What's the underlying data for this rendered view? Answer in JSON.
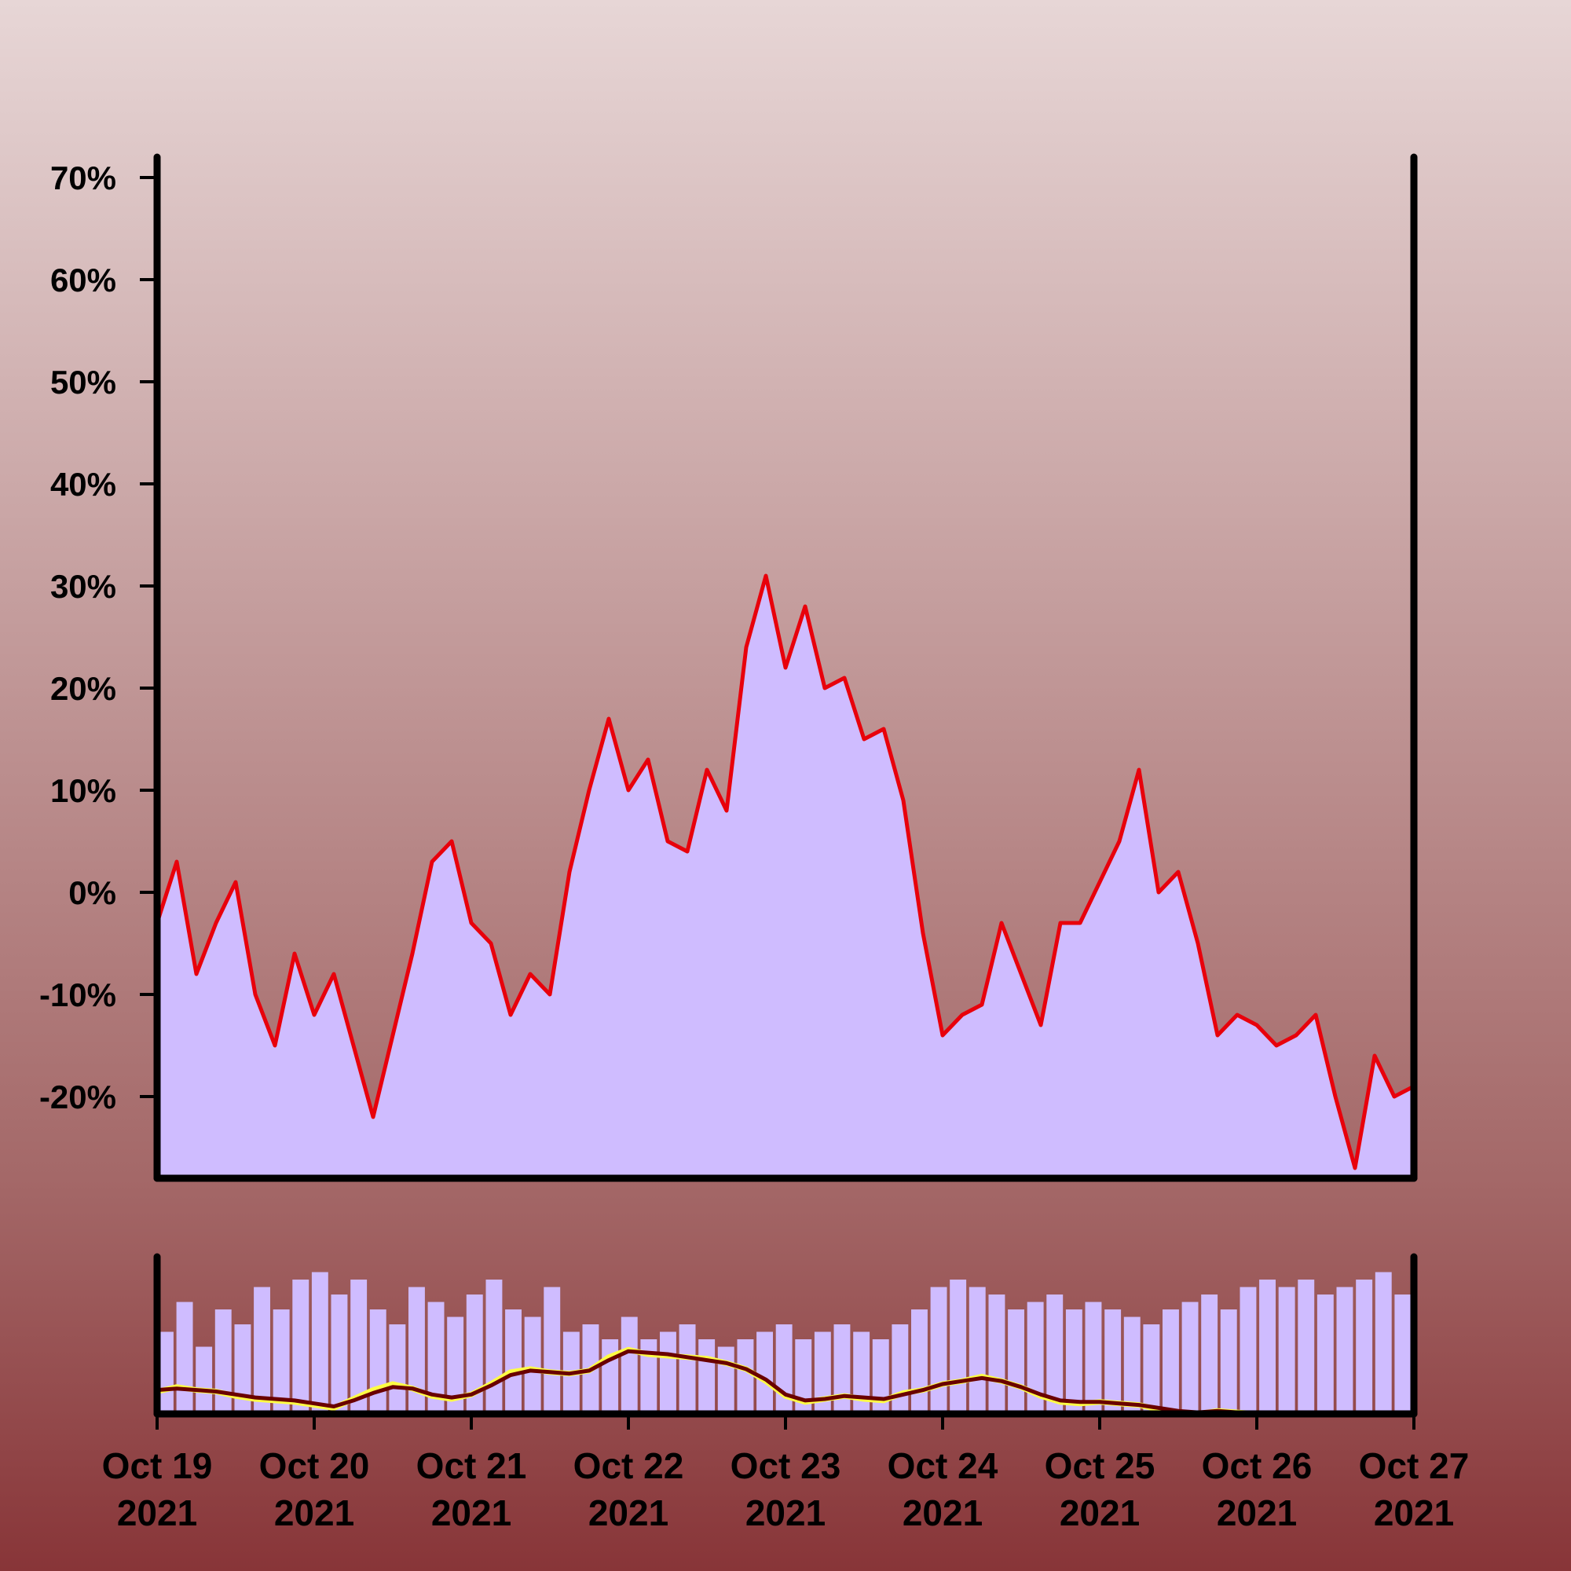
{
  "chart_data": [
    {
      "type": "area",
      "title": "",
      "xlabel": "",
      "ylabel": "",
      "ylim": [
        -28,
        72
      ],
      "y_ticks": [
        {
          "value": 70,
          "label": "70%"
        },
        {
          "value": 60,
          "label": "60%"
        },
        {
          "value": 50,
          "label": "50%"
        },
        {
          "value": 40,
          "label": "40%"
        },
        {
          "value": 30,
          "label": "30%"
        },
        {
          "value": 20,
          "label": "20%"
        },
        {
          "value": 10,
          "label": "10%"
        },
        {
          "value": 0,
          "label": "0%"
        },
        {
          "value": -10,
          "label": "-10%"
        },
        {
          "value": -20,
          "label": "-20%"
        }
      ],
      "grid": false,
      "colors": {
        "line": "#e8000b",
        "fill": "#cfbcff",
        "axis": "#000000"
      },
      "series": [
        {
          "x": [
            "2021-10-19 00:00",
            "2021-10-19 03:00",
            "2021-10-19 06:00",
            "2021-10-19 09:00",
            "2021-10-19 12:00",
            "2021-10-19 15:00",
            "2021-10-19 18:00",
            "2021-10-19 21:00",
            "2021-10-20 00:00",
            "2021-10-20 03:00",
            "2021-10-20 06:00",
            "2021-10-20 09:00",
            "2021-10-20 12:00",
            "2021-10-20 15:00",
            "2021-10-20 18:00",
            "2021-10-20 21:00",
            "2021-10-21 00:00",
            "2021-10-21 03:00",
            "2021-10-21 06:00",
            "2021-10-21 09:00",
            "2021-10-21 12:00",
            "2021-10-21 15:00",
            "2021-10-21 18:00",
            "2021-10-21 21:00",
            "2021-10-22 00:00",
            "2021-10-22 03:00",
            "2021-10-22 06:00",
            "2021-10-22 09:00",
            "2021-10-22 12:00",
            "2021-10-22 15:00",
            "2021-10-22 18:00",
            "2021-10-22 21:00",
            "2021-10-23 00:00",
            "2021-10-23 03:00",
            "2021-10-23 06:00",
            "2021-10-23 09:00",
            "2021-10-23 12:00",
            "2021-10-23 15:00",
            "2021-10-23 18:00",
            "2021-10-23 21:00",
            "2021-10-24 00:00",
            "2021-10-24 03:00",
            "2021-10-24 06:00",
            "2021-10-24 09:00",
            "2021-10-24 12:00",
            "2021-10-24 15:00",
            "2021-10-24 18:00",
            "2021-10-24 21:00",
            "2021-10-25 00:00",
            "2021-10-25 03:00",
            "2021-10-25 06:00",
            "2021-10-25 09:00",
            "2021-10-25 12:00",
            "2021-10-25 15:00",
            "2021-10-25 18:00",
            "2021-10-25 21:00",
            "2021-10-26 00:00",
            "2021-10-26 03:00",
            "2021-10-26 06:00",
            "2021-10-26 09:00",
            "2021-10-26 12:00",
            "2021-10-26 15:00",
            "2021-10-26 18:00",
            "2021-10-26 21:00",
            "2021-10-27 00:00"
          ],
          "values": [
            -3,
            3,
            -8,
            -3,
            1,
            -10,
            -15,
            -6,
            -12,
            -8,
            -15,
            -22,
            -14,
            -6,
            3,
            5,
            -3,
            -5,
            -12,
            -8,
            -10,
            2,
            10,
            17,
            10,
            13,
            5,
            4,
            12,
            8,
            24,
            31,
            22,
            28,
            20,
            21,
            15,
            16,
            9,
            -4,
            -14,
            -12,
            -11,
            -3,
            -8,
            -13,
            -3,
            -3,
            1,
            5,
            12,
            0,
            2,
            -5,
            -14,
            -12,
            -13,
            -15,
            -14,
            -12,
            -20,
            -27,
            -16,
            -20,
            -19
          ]
        }
      ]
    },
    {
      "type": "bar",
      "title": "",
      "xlabel": "",
      "ylabel": "",
      "x_ticks": [
        {
          "date": "2021-10-19",
          "line1": "Oct 19",
          "line2": "2021"
        },
        {
          "date": "2021-10-20",
          "line1": "Oct 20",
          "line2": "2021"
        },
        {
          "date": "2021-10-21",
          "line1": "Oct 21",
          "line2": "2021"
        },
        {
          "date": "2021-10-22",
          "line1": "Oct 22",
          "line2": "2021"
        },
        {
          "date": "2021-10-23",
          "line1": "Oct 23",
          "line2": "2021"
        },
        {
          "date": "2021-10-24",
          "line1": "Oct 24",
          "line2": "2021"
        },
        {
          "date": "2021-10-25",
          "line1": "Oct 25",
          "line2": "2021"
        },
        {
          "date": "2021-10-26",
          "line1": "Oct 26",
          "line2": "2021"
        },
        {
          "date": "2021-10-27",
          "line1": "Oct 27",
          "line2": "2021"
        }
      ],
      "colors": {
        "bars": "#cfbcff",
        "short_average": "#ffff44",
        "long_average": "#6a0000"
      },
      "series": [
        {
          "name": "",
          "values": [
            0.55,
            0.75,
            0.45,
            0.7,
            0.6,
            0.85,
            0.7,
            0.9,
            0.95,
            0.8,
            0.9,
            0.7,
            0.6,
            0.85,
            0.75,
            0.65,
            0.8,
            0.9,
            0.7,
            0.65,
            0.85,
            0.55,
            0.6,
            0.5,
            0.65,
            0.5,
            0.55,
            0.6,
            0.5,
            0.45,
            0.5,
            0.55,
            0.6,
            0.5,
            0.55,
            0.6,
            0.55,
            0.5,
            0.6,
            0.7,
            0.85,
            0.9,
            0.85,
            0.8,
            0.7,
            0.75,
            0.8,
            0.7,
            0.75,
            0.7,
            0.65,
            0.6,
            0.7,
            0.75,
            0.8,
            0.7,
            0.85,
            0.9,
            0.85,
            0.9,
            0.8,
            0.85,
            0.9,
            0.95,
            0.8
          ]
        },
        {
          "name": "",
          "values": [
            0.15,
            0.18,
            0.16,
            0.15,
            0.12,
            0.1,
            0.09,
            0.08,
            0.06,
            0.04,
            0.1,
            0.16,
            0.2,
            0.17,
            0.12,
            0.1,
            0.13,
            0.2,
            0.28,
            0.3,
            0.28,
            0.27,
            0.29,
            0.38,
            0.43,
            0.4,
            0.39,
            0.38,
            0.37,
            0.34,
            0.3,
            0.22,
            0.12,
            0.08,
            0.1,
            0.12,
            0.1,
            0.09,
            0.14,
            0.16,
            0.2,
            0.22,
            0.25,
            0.22,
            0.18,
            0.12,
            0.08,
            0.07,
            0.08,
            0.07,
            0.06,
            0.03,
            0.01,
            0.0,
            0.02,
            0.01,
            0.0,
            0.0,
            0.0,
            0.0,
            0.0,
            0.0,
            0.0,
            0.0,
            0.0
          ]
        },
        {
          "name": "",
          "values": [
            0.16,
            0.17,
            0.16,
            0.15,
            0.13,
            0.11,
            0.1,
            0.09,
            0.07,
            0.05,
            0.09,
            0.14,
            0.18,
            0.17,
            0.13,
            0.11,
            0.13,
            0.19,
            0.26,
            0.29,
            0.28,
            0.27,
            0.29,
            0.36,
            0.42,
            0.41,
            0.4,
            0.38,
            0.36,
            0.34,
            0.3,
            0.23,
            0.13,
            0.09,
            0.1,
            0.12,
            0.11,
            0.1,
            0.13,
            0.16,
            0.2,
            0.22,
            0.24,
            0.22,
            0.18,
            0.13,
            0.09,
            0.08,
            0.08,
            0.07,
            0.06,
            0.04,
            0.02,
            0.01,
            0.02,
            0.01,
            0.0,
            0.0,
            0.0,
            0.0,
            0.0,
            0.0,
            0.0,
            0.0,
            0.0
          ]
        }
      ]
    }
  ]
}
